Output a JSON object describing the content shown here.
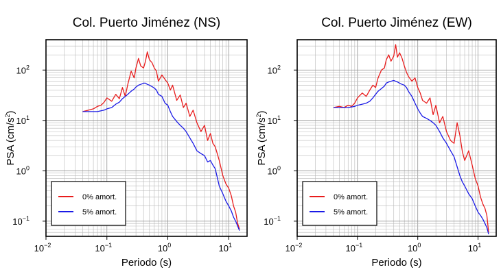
{
  "chart_data": [
    {
      "type": "line",
      "title": "Col. Puerto Jiménez (NS)",
      "xlabel": "Periodo (s)",
      "ylabel": "PSA (cm/s²)",
      "ylabel_main": "PSA (cm/s",
      "ylabel_sup": "2",
      "ylabel_end": ")",
      "x_scale": "log",
      "y_scale": "log",
      "xlim": [
        0.01,
        20
      ],
      "ylim": [
        0.05,
        400
      ],
      "grid": true,
      "legend_position": "bottom-left",
      "x_ticks": [
        {
          "base": "10",
          "exp": "−2"
        },
        {
          "base": "10",
          "exp": "−1"
        },
        {
          "base": "10",
          "exp": "0"
        },
        {
          "base": "10",
          "exp": "1"
        }
      ],
      "y_ticks": [
        {
          "base": "10",
          "exp": "2"
        },
        {
          "base": "10",
          "exp": "1"
        },
        {
          "base": "10",
          "exp": "0"
        },
        {
          "base": "10",
          "exp": "−1"
        }
      ],
      "series": [
        {
          "name": "0% amort.",
          "color": "#e81c1c",
          "x": [
            0.04,
            0.05,
            0.06,
            0.07,
            0.08,
            0.09,
            0.1,
            0.12,
            0.14,
            0.16,
            0.18,
            0.2,
            0.22,
            0.25,
            0.28,
            0.3,
            0.33,
            0.36,
            0.4,
            0.43,
            0.46,
            0.5,
            0.55,
            0.6,
            0.65,
            0.7,
            0.8,
            0.9,
            1.0,
            1.1,
            1.2,
            1.4,
            1.6,
            1.8,
            2.0,
            2.3,
            2.6,
            3.0,
            3.5,
            4.0,
            4.5,
            5.0,
            5.5,
            6.0,
            7.0,
            8.0,
            9.0,
            10.0,
            11.0,
            12.0,
            13.0,
            14.0,
            15.0
          ],
          "y": [
            15,
            16,
            17,
            19,
            20,
            23,
            28,
            24,
            33,
            27,
            45,
            30,
            52,
            95,
            70,
            110,
            170,
            120,
            110,
            150,
            230,
            160,
            140,
            110,
            95,
            60,
            80,
            65,
            55,
            40,
            50,
            25,
            32,
            18,
            22,
            12,
            16,
            9,
            6,
            8,
            4,
            5.5,
            3.5,
            3.0,
            1.6,
            0.8,
            0.55,
            0.45,
            0.32,
            0.2,
            0.15,
            0.09,
            0.07
          ]
        },
        {
          "name": "5% amort.",
          "color": "#1a1ae6",
          "x": [
            0.04,
            0.05,
            0.06,
            0.07,
            0.08,
            0.09,
            0.1,
            0.12,
            0.14,
            0.16,
            0.18,
            0.2,
            0.22,
            0.25,
            0.28,
            0.3,
            0.33,
            0.36,
            0.4,
            0.43,
            0.46,
            0.5,
            0.55,
            0.6,
            0.65,
            0.7,
            0.8,
            0.9,
            1.0,
            1.1,
            1.2,
            1.4,
            1.6,
            1.8,
            2.0,
            2.3,
            2.6,
            3.0,
            3.5,
            4.0,
            4.5,
            5.0,
            5.5,
            6.0,
            7.0,
            8.0,
            9.0,
            10.0,
            11.0,
            12.0,
            13.0,
            14.0,
            15.0
          ],
          "y": [
            15,
            15,
            15,
            15,
            15.5,
            16,
            17,
            18,
            21,
            23,
            27,
            30,
            33,
            38,
            42,
            46,
            50,
            52,
            55,
            55,
            52,
            50,
            47,
            44,
            40,
            33,
            30,
            22,
            20,
            15,
            12,
            9.5,
            8,
            7,
            6,
            4.5,
            3.5,
            2.5,
            2.2,
            2.0,
            1.5,
            1.6,
            1.3,
            1.1,
            0.5,
            0.35,
            0.25,
            0.2,
            0.16,
            0.12,
            0.1,
            0.08,
            0.065
          ]
        }
      ]
    },
    {
      "type": "line",
      "title": "Col. Puerto Jiménez (EW)",
      "xlabel": "Periodo (s)",
      "ylabel": "PSA (cm/s²)",
      "ylabel_main": "PSA (cm/s",
      "ylabel_sup": "2",
      "ylabel_end": ")",
      "x_scale": "log",
      "y_scale": "log",
      "xlim": [
        0.01,
        20
      ],
      "ylim": [
        0.05,
        400
      ],
      "grid": true,
      "legend_position": "bottom-left",
      "x_ticks": [
        {
          "base": "10",
          "exp": "−2"
        },
        {
          "base": "10",
          "exp": "−1"
        },
        {
          "base": "10",
          "exp": "0"
        },
        {
          "base": "10",
          "exp": "1"
        }
      ],
      "y_ticks": [
        {
          "base": "10",
          "exp": "2"
        },
        {
          "base": "10",
          "exp": "1"
        },
        {
          "base": "10",
          "exp": "0"
        },
        {
          "base": "10",
          "exp": "−1"
        }
      ],
      "series": [
        {
          "name": "0% amort.",
          "color": "#e81c1c",
          "x": [
            0.04,
            0.05,
            0.06,
            0.07,
            0.08,
            0.09,
            0.1,
            0.12,
            0.14,
            0.16,
            0.18,
            0.2,
            0.22,
            0.25,
            0.28,
            0.3,
            0.33,
            0.36,
            0.4,
            0.43,
            0.46,
            0.5,
            0.55,
            0.6,
            0.65,
            0.7,
            0.8,
            0.9,
            1.0,
            1.1,
            1.2,
            1.4,
            1.6,
            1.8,
            2.0,
            2.3,
            2.6,
            3.0,
            3.5,
            4.0,
            4.5,
            5.0,
            5.5,
            6.0,
            7.0,
            8.0,
            9.0,
            10.0,
            11.0,
            12.0,
            13.0,
            14.0,
            15.0
          ],
          "y": [
            18,
            19,
            18,
            20,
            19,
            22,
            28,
            35,
            30,
            40,
            50,
            45,
            70,
            100,
            110,
            160,
            200,
            150,
            190,
            320,
            180,
            220,
            170,
            120,
            90,
            75,
            60,
            70,
            45,
            35,
            25,
            22,
            28,
            13,
            20,
            9,
            12,
            6,
            4,
            3.5,
            9,
            5,
            2.4,
            1.6,
            2.5,
            1.3,
            0.7,
            0.5,
            0.3,
            0.22,
            0.18,
            0.13,
            0.06
          ]
        },
        {
          "name": "5% amort.",
          "color": "#1a1ae6",
          "x": [
            0.04,
            0.05,
            0.06,
            0.07,
            0.08,
            0.09,
            0.1,
            0.12,
            0.14,
            0.16,
            0.18,
            0.2,
            0.22,
            0.25,
            0.28,
            0.3,
            0.33,
            0.36,
            0.4,
            0.43,
            0.46,
            0.5,
            0.55,
            0.6,
            0.65,
            0.7,
            0.8,
            0.9,
            1.0,
            1.1,
            1.2,
            1.4,
            1.6,
            1.8,
            2.0,
            2.3,
            2.6,
            3.0,
            3.5,
            4.0,
            4.5,
            5.0,
            5.5,
            6.0,
            7.0,
            8.0,
            9.0,
            10.0,
            11.0,
            12.0,
            13.0,
            14.0,
            15.0
          ],
          "y": [
            18,
            18,
            18,
            18,
            18.5,
            19,
            20,
            21,
            22,
            24,
            28,
            33,
            38,
            43,
            48,
            55,
            58,
            60,
            62,
            60,
            58,
            55,
            52,
            50,
            45,
            38,
            30,
            22,
            17,
            14,
            12,
            11,
            10,
            9,
            8,
            6,
            4.5,
            3.5,
            2.5,
            1.9,
            1.2,
            0.8,
            0.6,
            0.5,
            0.35,
            0.28,
            0.2,
            0.15,
            0.13,
            0.11,
            0.09,
            0.075,
            0.055
          ]
        }
      ]
    }
  ]
}
